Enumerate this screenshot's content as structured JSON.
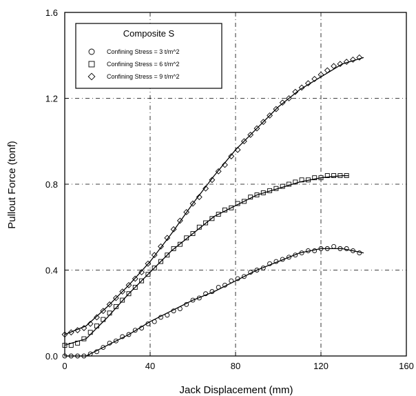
{
  "chart_data": {
    "type": "scatter",
    "title": "",
    "xlabel": "Jack Displacement (mm)",
    "ylabel": "Pullout Force (tonf)",
    "xlim": [
      0,
      160
    ],
    "ylim": [
      0,
      1.6
    ],
    "xticks": [
      "0",
      "40",
      "80",
      "120",
      "160"
    ],
    "yticks": [
      "0.0",
      "0.4",
      "0.8",
      "1.2",
      "1.6"
    ],
    "grid": true,
    "legend": {
      "title": "Composite S",
      "position": "top-left"
    },
    "series": [
      {
        "name": "Confining Stress = 3 t/m^2",
        "marker": "circle",
        "points": [
          [
            0,
            0.0
          ],
          [
            3,
            0.0
          ],
          [
            6,
            0.0
          ],
          [
            9,
            0.0
          ],
          [
            12,
            0.01
          ],
          [
            15,
            0.02
          ],
          [
            18,
            0.04
          ],
          [
            21,
            0.06
          ],
          [
            24,
            0.07
          ],
          [
            27,
            0.09
          ],
          [
            30,
            0.1
          ],
          [
            33,
            0.12
          ],
          [
            36,
            0.13
          ],
          [
            39,
            0.15
          ],
          [
            42,
            0.16
          ],
          [
            45,
            0.18
          ],
          [
            48,
            0.19
          ],
          [
            51,
            0.21
          ],
          [
            54,
            0.22
          ],
          [
            57,
            0.24
          ],
          [
            60,
            0.26
          ],
          [
            63,
            0.27
          ],
          [
            66,
            0.29
          ],
          [
            69,
            0.3
          ],
          [
            72,
            0.32
          ],
          [
            75,
            0.33
          ],
          [
            78,
            0.35
          ],
          [
            81,
            0.36
          ],
          [
            84,
            0.37
          ],
          [
            87,
            0.39
          ],
          [
            90,
            0.4
          ],
          [
            93,
            0.41
          ],
          [
            96,
            0.43
          ],
          [
            99,
            0.44
          ],
          [
            102,
            0.45
          ],
          [
            105,
            0.46
          ],
          [
            108,
            0.47
          ],
          [
            111,
            0.48
          ],
          [
            114,
            0.49
          ],
          [
            117,
            0.49
          ],
          [
            120,
            0.5
          ],
          [
            123,
            0.5
          ],
          [
            126,
            0.51
          ],
          [
            129,
            0.5
          ],
          [
            132,
            0.5
          ],
          [
            135,
            0.49
          ],
          [
            138,
            0.48
          ]
        ],
        "fit": [
          [
            0,
            0.0
          ],
          [
            10,
            0.0
          ],
          [
            20,
            0.05
          ],
          [
            30,
            0.1
          ],
          [
            40,
            0.16
          ],
          [
            50,
            0.21
          ],
          [
            60,
            0.26
          ],
          [
            70,
            0.3
          ],
          [
            80,
            0.35
          ],
          [
            90,
            0.4
          ],
          [
            100,
            0.44
          ],
          [
            110,
            0.48
          ],
          [
            120,
            0.5
          ],
          [
            130,
            0.5
          ],
          [
            140,
            0.48
          ]
        ]
      },
      {
        "name": "Confining Stress = 6 t/m^2",
        "marker": "square",
        "points": [
          [
            0,
            0.05
          ],
          [
            3,
            0.05
          ],
          [
            6,
            0.06
          ],
          [
            9,
            0.08
          ],
          [
            12,
            0.11
          ],
          [
            15,
            0.14
          ],
          [
            18,
            0.17
          ],
          [
            21,
            0.2
          ],
          [
            24,
            0.23
          ],
          [
            27,
            0.26
          ],
          [
            30,
            0.29
          ],
          [
            33,
            0.32
          ],
          [
            36,
            0.35
          ],
          [
            39,
            0.38
          ],
          [
            42,
            0.41
          ],
          [
            45,
            0.44
          ],
          [
            48,
            0.47
          ],
          [
            51,
            0.5
          ],
          [
            54,
            0.52
          ],
          [
            57,
            0.55
          ],
          [
            60,
            0.57
          ],
          [
            63,
            0.6
          ],
          [
            66,
            0.62
          ],
          [
            69,
            0.64
          ],
          [
            72,
            0.66
          ],
          [
            75,
            0.68
          ],
          [
            78,
            0.69
          ],
          [
            81,
            0.71
          ],
          [
            84,
            0.72
          ],
          [
            87,
            0.74
          ],
          [
            90,
            0.75
          ],
          [
            93,
            0.76
          ],
          [
            96,
            0.77
          ],
          [
            99,
            0.78
          ],
          [
            102,
            0.79
          ],
          [
            105,
            0.8
          ],
          [
            108,
            0.81
          ],
          [
            111,
            0.82
          ],
          [
            114,
            0.82
          ],
          [
            117,
            0.83
          ],
          [
            120,
            0.83
          ],
          [
            123,
            0.84
          ],
          [
            126,
            0.84
          ],
          [
            129,
            0.84
          ],
          [
            132,
            0.84
          ]
        ],
        "fit": [
          [
            0,
            0.05
          ],
          [
            10,
            0.08
          ],
          [
            20,
            0.18
          ],
          [
            30,
            0.29
          ],
          [
            40,
            0.39
          ],
          [
            50,
            0.49
          ],
          [
            60,
            0.57
          ],
          [
            70,
            0.65
          ],
          [
            80,
            0.7
          ],
          [
            90,
            0.75
          ],
          [
            100,
            0.78
          ],
          [
            110,
            0.81
          ],
          [
            120,
            0.83
          ],
          [
            130,
            0.84
          ],
          [
            133,
            0.84
          ]
        ]
      },
      {
        "name": "Confining Stress = 9 t/m^2",
        "marker": "diamond",
        "points": [
          [
            0,
            0.1
          ],
          [
            3,
            0.11
          ],
          [
            6,
            0.12
          ],
          [
            9,
            0.13
          ],
          [
            12,
            0.15
          ],
          [
            15,
            0.18
          ],
          [
            18,
            0.21
          ],
          [
            21,
            0.24
          ],
          [
            24,
            0.27
          ],
          [
            27,
            0.3
          ],
          [
            30,
            0.33
          ],
          [
            33,
            0.36
          ],
          [
            36,
            0.39
          ],
          [
            39,
            0.43
          ],
          [
            42,
            0.47
          ],
          [
            45,
            0.51
          ],
          [
            48,
            0.55
          ],
          [
            51,
            0.59
          ],
          [
            54,
            0.63
          ],
          [
            57,
            0.67
          ],
          [
            60,
            0.71
          ],
          [
            63,
            0.74
          ],
          [
            66,
            0.78
          ],
          [
            69,
            0.82
          ],
          [
            72,
            0.86
          ],
          [
            75,
            0.89
          ],
          [
            78,
            0.93
          ],
          [
            81,
            0.96
          ],
          [
            84,
            1.0
          ],
          [
            87,
            1.03
          ],
          [
            90,
            1.06
          ],
          [
            93,
            1.09
          ],
          [
            96,
            1.12
          ],
          [
            99,
            1.15
          ],
          [
            102,
            1.18
          ],
          [
            105,
            1.2
          ],
          [
            108,
            1.23
          ],
          [
            111,
            1.25
          ],
          [
            114,
            1.27
          ],
          [
            117,
            1.29
          ],
          [
            120,
            1.31
          ],
          [
            123,
            1.33
          ],
          [
            126,
            1.35
          ],
          [
            129,
            1.36
          ],
          [
            132,
            1.37
          ],
          [
            135,
            1.38
          ],
          [
            138,
            1.39
          ]
        ],
        "fit": [
          [
            0,
            0.1
          ],
          [
            10,
            0.14
          ],
          [
            20,
            0.23
          ],
          [
            30,
            0.33
          ],
          [
            40,
            0.44
          ],
          [
            50,
            0.57
          ],
          [
            60,
            0.71
          ],
          [
            70,
            0.84
          ],
          [
            80,
            0.96
          ],
          [
            90,
            1.06
          ],
          [
            100,
            1.16
          ],
          [
            110,
            1.24
          ],
          [
            120,
            1.3
          ],
          [
            130,
            1.36
          ],
          [
            140,
            1.39
          ]
        ]
      }
    ]
  }
}
